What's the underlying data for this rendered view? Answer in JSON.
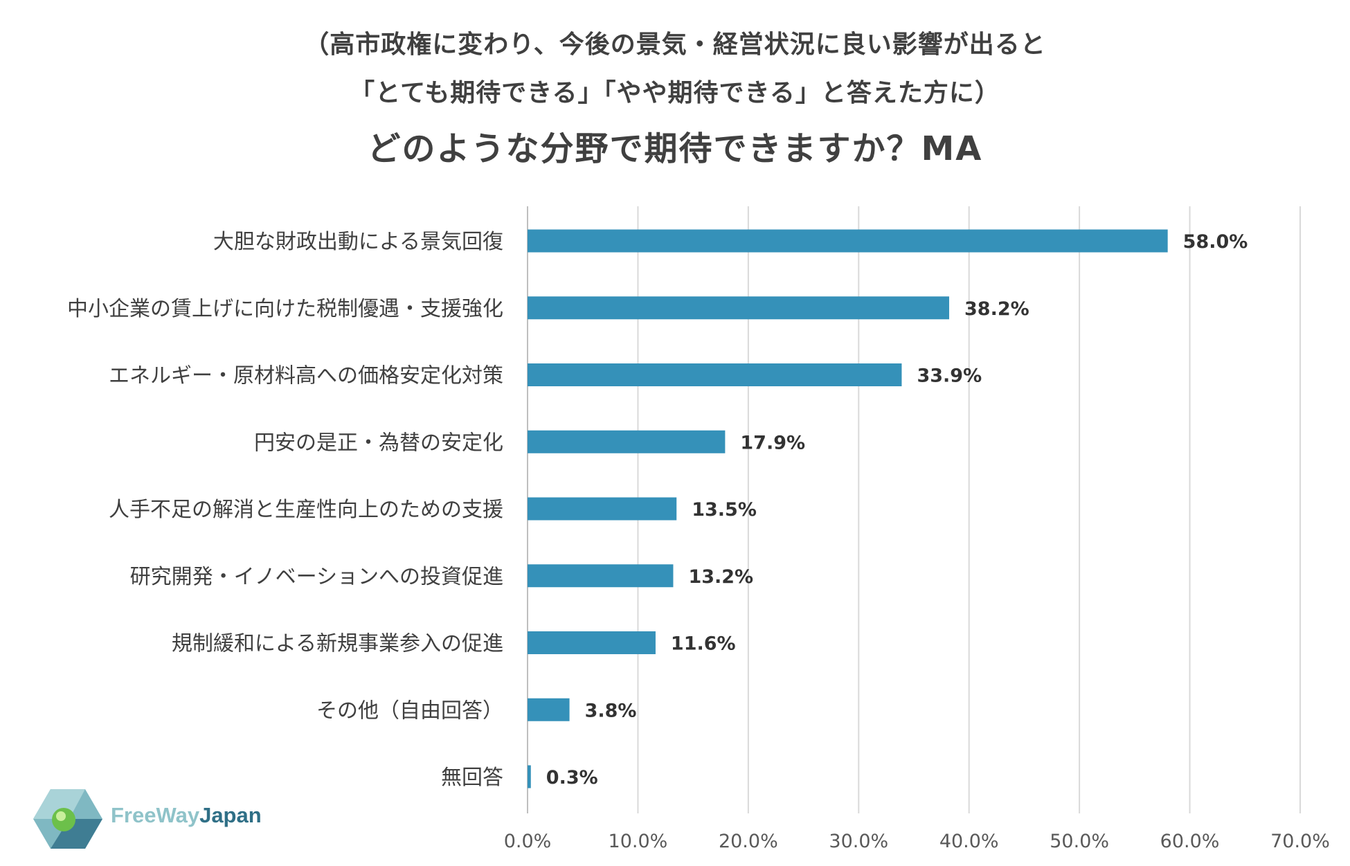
{
  "title": {
    "line1": "（高市政権に変わり、今後の景気・経営状況に良い影響が出ると",
    "line2": "「とても期待できる」「やや期待できる」と答えた方に）",
    "main": "どのような分野で期待できますか？MA"
  },
  "logo": {
    "part1": "FreeWay",
    "part2": "Japan",
    "icon": "freewayjapan-logo-icon"
  },
  "colors": {
    "bar": "#3591b9",
    "grid": "#d9d9d9",
    "text": "#404040"
  },
  "chart_data": {
    "type": "bar",
    "orientation": "horizontal",
    "categories": [
      "大胆な財政出動による景気回復",
      "中小企業の賃上げに向けた税制優遇・支援強化",
      "エネルギー・原材料高への価格安定化対策",
      "円安の是正・為替の安定化",
      "人手不足の解消と生産性向上のための支援",
      "研究開発・イノベーションへの投資促進",
      "規制緩和による新規事業参入の促進",
      "その他（自由回答）",
      "無回答"
    ],
    "values": [
      58.0,
      38.2,
      33.9,
      17.9,
      13.5,
      13.2,
      11.6,
      3.8,
      0.3
    ],
    "value_labels": [
      "58.0%",
      "38.2%",
      "33.9%",
      "17.9%",
      "13.5%",
      "13.2%",
      "11.6%",
      "3.8%",
      "0.3%"
    ],
    "xlim": [
      0,
      70
    ],
    "xticks": [
      0,
      10,
      20,
      30,
      40,
      50,
      60,
      70
    ],
    "xtick_labels": [
      "0.0%",
      "10.0%",
      "20.0%",
      "30.0%",
      "40.0%",
      "50.0%",
      "60.0%",
      "70.0%"
    ],
    "grid": "vertical",
    "legend": "none"
  }
}
